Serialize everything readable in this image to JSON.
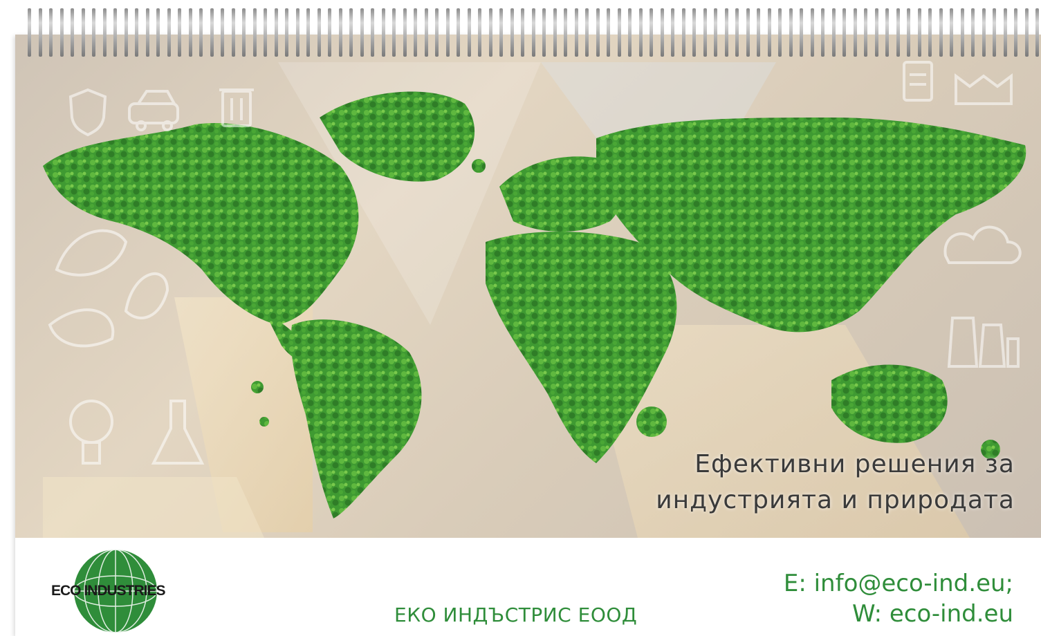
{
  "calendar": {
    "tagline_line1": "Ефективни решения за",
    "tagline_line2": "индустрията и природата",
    "company_name": "ЕКО ИНДЪСТРИС ЕООД",
    "email_line": "E: info@eco-ind.eu;",
    "web_line": "W: eco-ind.eu",
    "logo_text": "ECO INDUSTRIES"
  },
  "icons": [
    "shield-icon",
    "car-icon",
    "trash-bin-icon",
    "leaf-icon",
    "lightbulb-icon",
    "flask-icon",
    "factory-icon",
    "clipboard-icon",
    "cloud-icon",
    "power-plant-icon"
  ],
  "colors": {
    "brand_green": "#2f8d3a",
    "moss_green": "#3f9a32",
    "tagline_text": "#3a3a3a"
  }
}
